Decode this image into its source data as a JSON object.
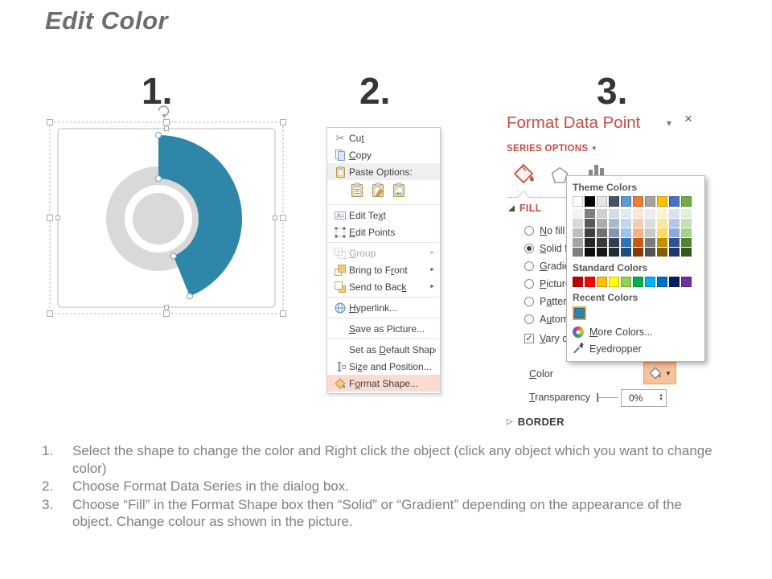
{
  "page": {
    "title": "Edit Color"
  },
  "steps": {
    "one": "1.",
    "two": "2.",
    "three": "3."
  },
  "glyphs": {
    "submenu_arrow": "►",
    "pane_collapse": "▾",
    "pane_close": "×",
    "series_dropdown": "▼",
    "border_collapsed": "▷",
    "check": "✓",
    "scissors": "✂",
    "spin_up": "▲",
    "spin_down": "▼",
    "color_btn_dropdown": "▼"
  },
  "donut": {
    "accent_color": "#2E86A8",
    "base_color": "#D9D9D9",
    "accent_sweep_deg": 158
  },
  "context_menu": {
    "items": [
      {
        "pre": "Cu",
        "key": "t",
        "post": ""
      },
      {
        "pre": "",
        "key": "C",
        "post": "opy"
      },
      {
        "pre": "Paste Options:",
        "key": "",
        "post": ""
      },
      {
        "pre": "Edit Te",
        "key": "x",
        "post": "t"
      },
      {
        "pre": "",
        "key": "E",
        "post": "dit Points"
      },
      {
        "pre": "",
        "key": "G",
        "post": "roup"
      },
      {
        "pre": "Bring to F",
        "key": "r",
        "post": "ont"
      },
      {
        "pre": "Send to Bac",
        "key": "k",
        "post": ""
      },
      {
        "pre": "",
        "key": "H",
        "post": "yperlink..."
      },
      {
        "pre": "",
        "key": "S",
        "post": "ave as Picture..."
      },
      {
        "pre": "Set as ",
        "key": "D",
        "post": "efault Shape"
      },
      {
        "pre": "Si",
        "key": "z",
        "post": "e and Position..."
      },
      {
        "pre": "F",
        "key": "o",
        "post": "rmat Shape..."
      }
    ]
  },
  "format_pane": {
    "title": "Format Data Point",
    "section_label": "SERIES OPTIONS",
    "fill_header": "FILL",
    "border_header": "BORDER",
    "options": [
      {
        "pre": "",
        "key": "N",
        "post": "o fill"
      },
      {
        "pre": "",
        "key": "S",
        "post": "olid fill"
      },
      {
        "pre": "",
        "key": "G",
        "post": "radient fill"
      },
      {
        "pre": "",
        "key": "P",
        "post": "icture or texture fill"
      },
      {
        "pre": "P",
        "key": "a",
        "post": "ttern fill"
      },
      {
        "pre": "A",
        "key": "u",
        "post": "tomatic"
      }
    ],
    "vary_label": {
      "pre": "",
      "key": "V",
      "post": "ary colors by point"
    },
    "color_label": {
      "pre": "",
      "key": "C",
      "post": "olor"
    },
    "transparency_label": {
      "pre": "",
      "key": "T",
      "post": "ransparency"
    },
    "transparency_value": "0%"
  },
  "color_popup": {
    "theme_label": "Theme Colors",
    "standard_label": "Standard Colors",
    "recent_label": "Recent Colors",
    "more_colors": {
      "pre": "",
      "key": "M",
      "post": "ore Colors..."
    },
    "eyedropper_label": "Eyedropper",
    "theme": [
      {
        "main": "#FFFFFF",
        "shades": [
          "#F2F2F2",
          "#D9D9D9",
          "#BFBFBF",
          "#A6A6A6",
          "#7F7F7F"
        ]
      },
      {
        "main": "#000000",
        "shades": [
          "#7F7F7F",
          "#595959",
          "#404040",
          "#262626",
          "#0D0D0D"
        ]
      },
      {
        "main": "#E7E6E6",
        "shades": [
          "#D0CECE",
          "#AEAAAA",
          "#757171",
          "#3A3838",
          "#161616"
        ]
      },
      {
        "main": "#44546A",
        "shades": [
          "#D6DCE5",
          "#ACB9CA",
          "#8496B0",
          "#333F50",
          "#222B35"
        ]
      },
      {
        "main": "#5B9BD5",
        "shades": [
          "#DEEBF7",
          "#BDD7EE",
          "#9DC3E6",
          "#2E75B6",
          "#1F4E79"
        ]
      },
      {
        "main": "#ED7D31",
        "shades": [
          "#FBE5D6",
          "#F8CBAD",
          "#F4B183",
          "#C55A11",
          "#833C00"
        ]
      },
      {
        "main": "#A5A5A5",
        "shades": [
          "#EDEDED",
          "#DBDBDB",
          "#C9C9C9",
          "#7B7B7B",
          "#525252"
        ]
      },
      {
        "main": "#FFC000",
        "shades": [
          "#FFF2CC",
          "#FFE599",
          "#FFD966",
          "#BF9000",
          "#7F6000"
        ]
      },
      {
        "main": "#4472C4",
        "shades": [
          "#D9E2F3",
          "#B4C7E7",
          "#8EAADB",
          "#2F5496",
          "#1F3864"
        ]
      },
      {
        "main": "#70AD47",
        "shades": [
          "#E2EFD9",
          "#C5E0B3",
          "#A8D08D",
          "#538135",
          "#375623"
        ]
      }
    ],
    "standard": [
      "#C00000",
      "#FF0000",
      "#FFC000",
      "#FFFF00",
      "#92D050",
      "#00B050",
      "#00B0F0",
      "#0070C0",
      "#002060",
      "#7030A0"
    ],
    "recent": [
      "#2E86A8"
    ]
  },
  "instructions": [
    {
      "num": "1.",
      "text": "Select the shape to change the color and Right click the object (click any object which you want to change color)"
    },
    {
      "num": "2.",
      "text": "Choose Format Data Series in the dialog box."
    },
    {
      "num": "3.",
      "text": "Choose “Fill” in the Format Shape box then “Solid” or “Gradient” depending on the appearance of the object. Change colour as shown in the picture."
    }
  ]
}
